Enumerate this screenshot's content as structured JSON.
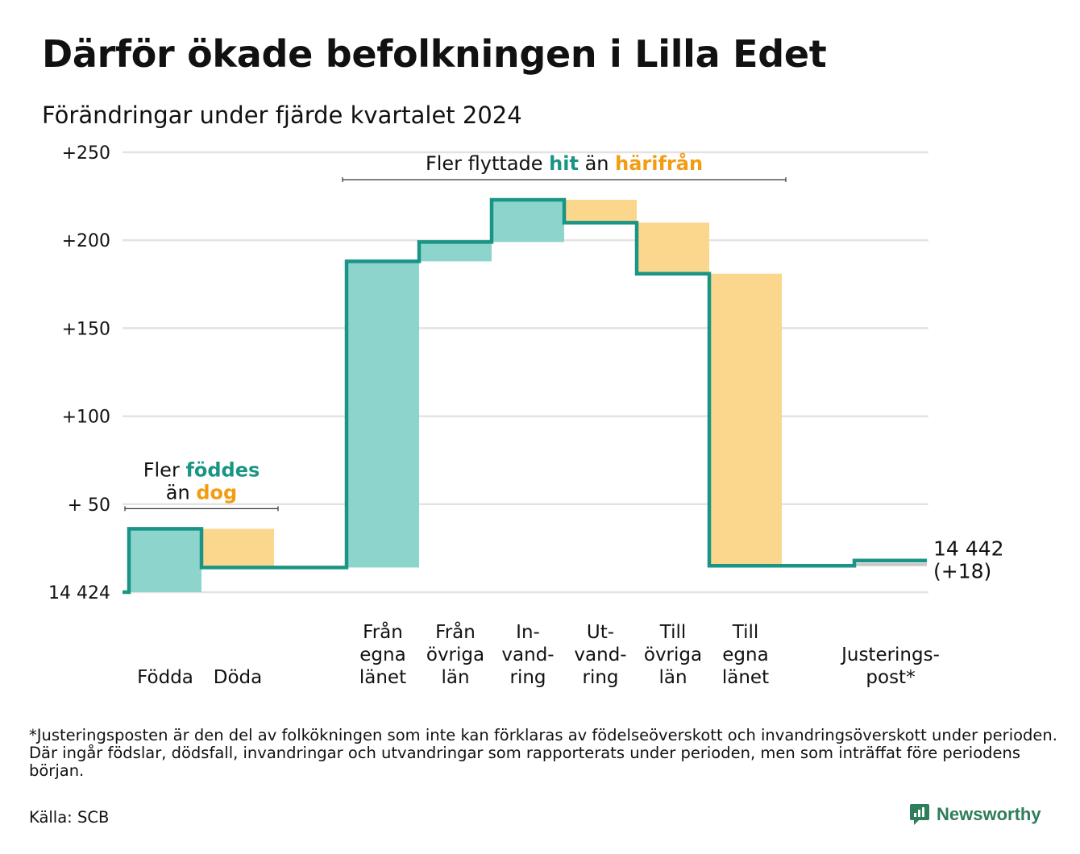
{
  "title": "Därför ökade befolkningen i Lilla Edet",
  "subtitle": "Förändringar under fjärde kvartalet 2024",
  "footnote": "*Justeringsposten är den del av folkökningen som inte kan förklaras av födelseöverskott och invandringsöverskott under perioden. Där ingår födslar, dödsfall, invandringar och utvandringar som rapporterats under perioden, men som inträffat före periodens början.",
  "source": "Källa: SCB",
  "brand": "Newsworthy",
  "colors": {
    "increase": "#8dd5cc",
    "decrease": "#fbd68d",
    "adjustment": "#c8c8c8",
    "line": "#1a9585",
    "teal_text": "#1a9585",
    "orange_text": "#f39c12",
    "grid": "#e3e3e3",
    "brand": "#2e7d5b"
  },
  "chart_data": {
    "type": "waterfall",
    "start_value": 14424,
    "end_label": [
      "14 442",
      "(+18)"
    ],
    "y_ticks": [
      {
        "value": 0,
        "label": "14 424"
      },
      {
        "value": 50,
        "label": "+ 50"
      },
      {
        "value": 100,
        "label": "+100"
      },
      {
        "value": 150,
        "label": "+150"
      },
      {
        "value": 200,
        "label": "+200"
      },
      {
        "value": 250,
        "label": "+250"
      }
    ],
    "ylim": [
      0,
      250
    ],
    "grid": true,
    "steps": [
      {
        "label": [
          "Födda"
        ],
        "value": 36,
        "group": "natural"
      },
      {
        "label": [
          "Döda"
        ],
        "value": -22,
        "group": "natural"
      },
      {
        "label": [],
        "value": 0,
        "group": "gap"
      },
      {
        "label": [
          "Från",
          "egna",
          "länet"
        ],
        "value": 174,
        "group": "migration"
      },
      {
        "label": [
          "Från",
          "övriga",
          "län"
        ],
        "value": 11,
        "group": "migration"
      },
      {
        "label": [
          "In-",
          "vand-",
          "ring"
        ],
        "value": 24,
        "group": "migration"
      },
      {
        "label": [
          "Ut-",
          "vand-",
          "ring"
        ],
        "value": -13,
        "group": "migration"
      },
      {
        "label": [
          "Till",
          "övriga",
          "län"
        ],
        "value": -29,
        "group": "migration"
      },
      {
        "label": [
          "Till",
          "egna",
          "länet"
        ],
        "value": -166,
        "group": "migration"
      },
      {
        "label": [],
        "value": 0,
        "group": "gap"
      },
      {
        "label": [
          "Justerings-",
          "post*"
        ],
        "value": 3,
        "group": "adjustment"
      }
    ],
    "annotations": [
      {
        "group": "natural",
        "lines": [
          [
            {
              "text": "Fler ",
              "style": "plain"
            },
            {
              "text": "föddes",
              "style": "teal"
            }
          ],
          [
            {
              "text": "än ",
              "style": "plain"
            },
            {
              "text": "dog",
              "style": "orange"
            }
          ]
        ]
      },
      {
        "group": "migration",
        "lines": [
          [
            {
              "text": "Fler flyttade ",
              "style": "plain"
            },
            {
              "text": "hit",
              "style": "teal"
            },
            {
              "text": " än ",
              "style": "plain"
            },
            {
              "text": "härifrån",
              "style": "orange"
            }
          ]
        ]
      }
    ]
  }
}
